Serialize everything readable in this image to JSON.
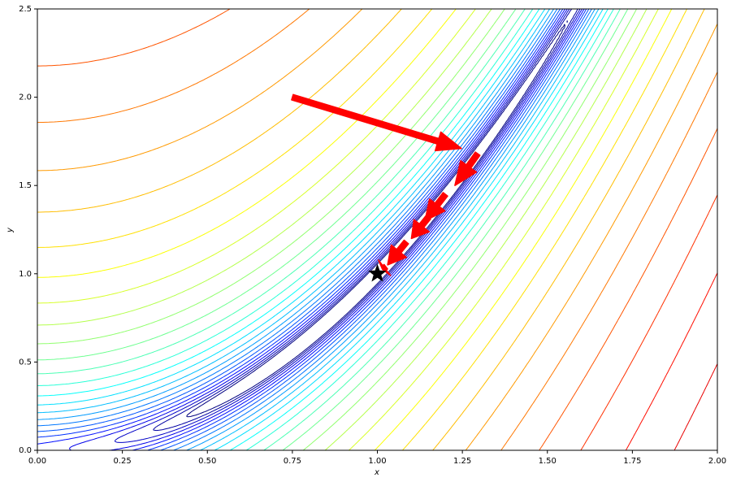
{
  "chart_data": {
    "type": "contour",
    "xlabel": "x",
    "ylabel": "y",
    "xlim": [
      0,
      2
    ],
    "ylim": [
      0,
      2.5
    ],
    "xticks": [
      {
        "value": 0,
        "label": "0.00"
      },
      {
        "value": 0.25,
        "label": "0.25"
      },
      {
        "value": 0.5,
        "label": "0.50"
      },
      {
        "value": 0.75,
        "label": "0.75"
      },
      {
        "value": 1,
        "label": "1.00"
      },
      {
        "value": 1.25,
        "label": "1.25"
      },
      {
        "value": 1.5,
        "label": "1.50"
      },
      {
        "value": 1.75,
        "label": "1.75"
      },
      {
        "value": 2,
        "label": "2.00"
      }
    ],
    "yticks": [
      {
        "value": 0,
        "label": "0.0"
      },
      {
        "value": 0.5,
        "label": "0.5"
      },
      {
        "value": 1,
        "label": "1.0"
      },
      {
        "value": 1.5,
        "label": "1.5"
      },
      {
        "value": 2,
        "label": "2.0"
      },
      {
        "value": 2.5,
        "label": "2.5"
      }
    ],
    "colormap": "jet",
    "levels": [
      0.316,
      0.435,
      0.597,
      0.821,
      1.13,
      1.55,
      2.13,
      2.93,
      4.03,
      5.54,
      7.61,
      10.5,
      14.4,
      19.8,
      27.2,
      37.4,
      51.3,
      70.5,
      96.9,
      133,
      183,
      252,
      346,
      475,
      653,
      898,
      1233,
      1695,
      2330,
      3162
    ],
    "arrow_color": "#ff0000",
    "arrows": [
      {
        "x0": 0.75,
        "y0": 2.0,
        "x1": 1.247,
        "y1": 1.71
      },
      {
        "x0": 1.295,
        "y0": 1.68,
        "x1": 1.228,
        "y1": 1.5
      },
      {
        "x0": 1.2,
        "y0": 1.45,
        "x1": 1.14,
        "y1": 1.3
      },
      {
        "x0": 1.15,
        "y0": 1.32,
        "x1": 1.1,
        "y1": 1.2
      },
      {
        "x0": 1.085,
        "y0": 1.18,
        "x1": 1.03,
        "y1": 1.05
      },
      {
        "x0": 1.025,
        "y0": 1.04,
        "x1": 1.015,
        "y1": 1.025
      }
    ],
    "marker": {
      "x": 1,
      "y": 1,
      "color": "#000000"
    }
  }
}
